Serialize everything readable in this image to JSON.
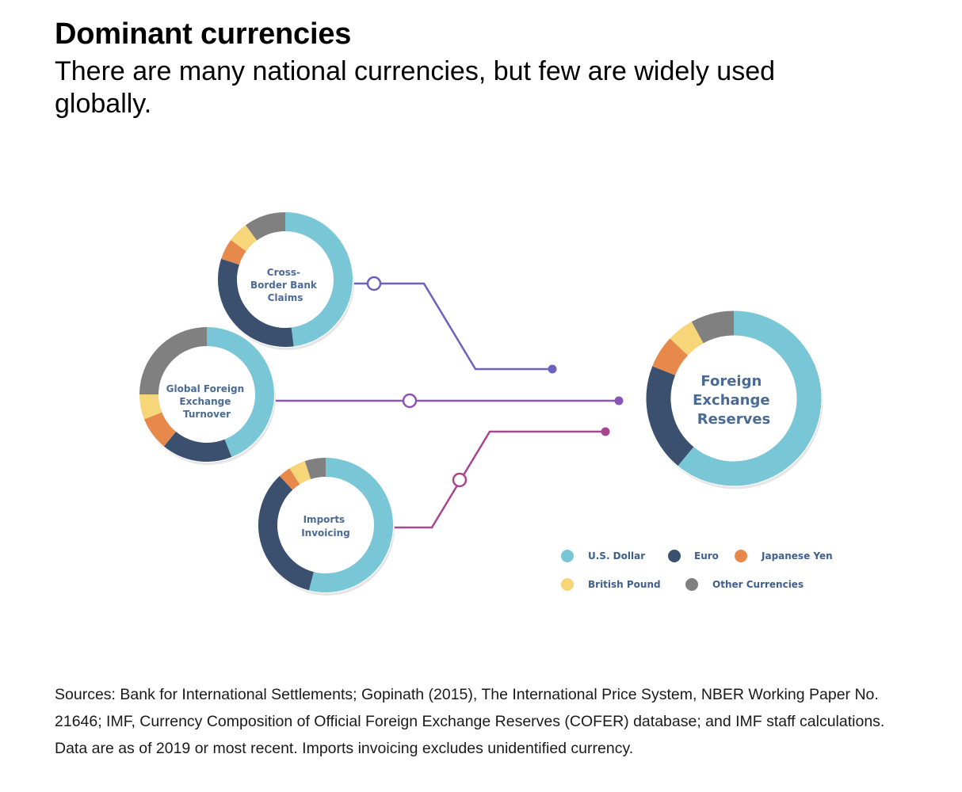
{
  "header": {
    "title": "Dominant currencies",
    "subtitle": "There are many national currencies, but few are widely used globally."
  },
  "footer": {
    "sources": "Sources: Bank for International Settlements; Gopinath (2015), The International Price System, NBER Working Paper No. 21646; IMF, Currency Composition of Official Foreign Exchange Reserves (COFER) database; and IMF staff calculations. Data are as of 2019 or most recent.  Imports invoicing excludes unidentified currency."
  },
  "colors": {
    "usd": "#79c6d6",
    "euro": "#3b4f6e",
    "yen": "#e8894c",
    "pound": "#f6d679",
    "other": "#808080",
    "line_top": "#6b62c0",
    "line_mid": "#8a55b8",
    "line_bottom": "#a8458f"
  },
  "legend": [
    {
      "key": "usd",
      "label": "U.S. Dollar"
    },
    {
      "key": "euro",
      "label": "Euro"
    },
    {
      "key": "yen",
      "label": "Japanese Yen"
    },
    {
      "key": "pound",
      "label": "British Pound"
    },
    {
      "key": "other",
      "label": "Other Currencies"
    }
  ],
  "chart_data": [
    {
      "type": "pie",
      "title": "Cross-Border Bank Claims",
      "labels": [
        "U.S. Dollar",
        "Euro",
        "Japanese Yen",
        "British Pound",
        "Other Currencies"
      ],
      "values": [
        48,
        32,
        5,
        5,
        10
      ]
    },
    {
      "type": "pie",
      "title": "Global Foreign Exchange Turnover",
      "labels": [
        "U.S. Dollar",
        "Euro",
        "Japanese Yen",
        "British Pound",
        "Other Currencies"
      ],
      "values": [
        44,
        17,
        8,
        6,
        25
      ]
    },
    {
      "type": "pie",
      "title": "Imports Invoicing",
      "labels": [
        "U.S. Dollar",
        "Euro",
        "Japanese Yen",
        "British Pound",
        "Other Currencies"
      ],
      "values": [
        54,
        34,
        3,
        4,
        5
      ]
    },
    {
      "type": "pie",
      "title": "Foreign Exchange Reserves",
      "labels": [
        "U.S. Dollar",
        "Euro",
        "Japanese Yen",
        "British Pound",
        "Other Currencies"
      ],
      "values": [
        61,
        20,
        6,
        5,
        8
      ]
    }
  ]
}
